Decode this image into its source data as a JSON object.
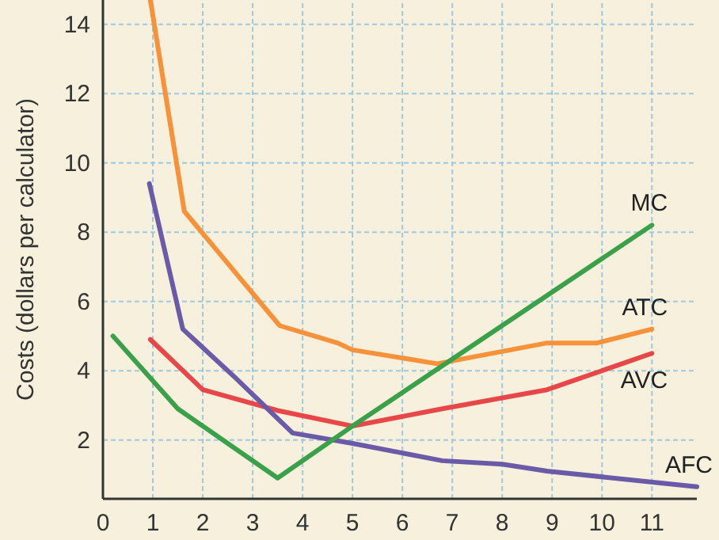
{
  "chart_data": {
    "type": "line",
    "ylabel": "Costs (dollars per calculator)",
    "xlim": [
      0,
      11.9
    ],
    "ylim": [
      0.3,
      14.7
    ],
    "xticks": [
      0,
      1,
      2,
      3,
      4,
      5,
      6,
      7,
      8,
      9,
      10,
      11
    ],
    "yticks": [
      2,
      4,
      6,
      8,
      10,
      12,
      14
    ],
    "grid": true,
    "legend": false,
    "marker": "none",
    "line_style": "solid",
    "series": [
      {
        "name": "ATC",
        "color": "#f7923a",
        "x": [
          0.95,
          1.63,
          3.54,
          4.7,
          5.0,
          6.7,
          8.9,
          9.9,
          11.0
        ],
        "values": [
          14.7,
          8.6,
          5.3,
          4.8,
          4.6,
          4.2,
          4.8,
          4.8,
          5.2
        ]
      },
      {
        "name": "AVC",
        "color": "#e8474a",
        "x": [
          0.95,
          2.0,
          3.5,
          5.0,
          6.8,
          8.9,
          11.0
        ],
        "values": [
          4.9,
          3.45,
          2.85,
          2.4,
          2.9,
          3.45,
          4.5
        ]
      },
      {
        "name": "AFC",
        "color": "#6a5aa8",
        "x": [
          0.93,
          1.6,
          2.65,
          3.8,
          5.0,
          6.8,
          8.0,
          8.9,
          11.9
        ],
        "values": [
          9.4,
          5.2,
          3.8,
          2.2,
          1.9,
          1.4,
          1.3,
          1.1,
          0.65
        ]
      },
      {
        "name": "MC",
        "color": "#3aa04a",
        "x": [
          0.2,
          1.5,
          3.5,
          5.0,
          11.0
        ],
        "values": [
          5.0,
          2.9,
          0.9,
          2.4,
          8.2
        ]
      }
    ]
  }
}
